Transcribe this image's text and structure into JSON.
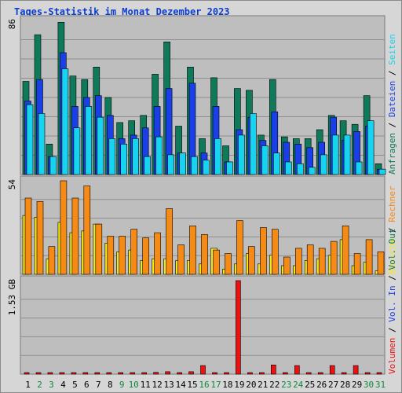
{
  "title": "Tages-Statistik im Monat Dezember 2023",
  "colors": {
    "anfragen": "#0e7a5a",
    "dateien": "#1a3fe6",
    "seiten": "#16d4f0",
    "besuche": "#f5e81a",
    "rechner": "#f58a14",
    "volumen": "#ee1111",
    "weekday_label": "#000000",
    "weekend_label": "#0a8a3a",
    "legend_slash": "#000000"
  },
  "days": [
    "1",
    "2",
    "3",
    "4",
    "5",
    "6",
    "7",
    "8",
    "9",
    "10",
    "11",
    "12",
    "13",
    "14",
    "15",
    "16",
    "17",
    "18",
    "19",
    "20",
    "21",
    "22",
    "23",
    "24",
    "25",
    "26",
    "27",
    "28",
    "29",
    "30",
    "31"
  ],
  "weekend_days": [
    "2",
    "3",
    "9",
    "10",
    "16",
    "17",
    "23",
    "24",
    "30",
    "31"
  ],
  "right_labels": {
    "top": [
      "Anfragen",
      "Dateien",
      "Seiten"
    ],
    "middle": [
      "Besuche",
      "Rechner"
    ],
    "bottom": [
      "Volumen",
      "Vol. In",
      "Vol. Out"
    ],
    "separator": " / "
  },
  "chart_data": [
    {
      "type": "bar",
      "ytick_label": "86",
      "ylim": [
        0,
        86
      ],
      "categories": [
        "1",
        "2",
        "3",
        "4",
        "5",
        "6",
        "7",
        "8",
        "9",
        "10",
        "11",
        "12",
        "13",
        "14",
        "15",
        "16",
        "17",
        "18",
        "19",
        "20",
        "21",
        "22",
        "23",
        "24",
        "25",
        "26",
        "27",
        "28",
        "29",
        "30",
        "31"
      ],
      "series": [
        {
          "name": "Anfragen",
          "values": [
            52,
            78,
            17,
            85,
            55,
            53,
            60,
            43,
            29,
            30,
            33,
            56,
            74,
            27,
            60,
            20,
            54,
            16,
            48,
            47,
            22,
            53,
            21,
            20,
            20,
            25,
            33,
            30,
            28,
            44,
            6
          ]
        },
        {
          "name": "Dateien",
          "values": [
            41,
            53,
            10,
            68,
            38,
            43,
            44,
            33,
            20,
            22,
            26,
            38,
            48,
            12,
            51,
            12,
            38,
            7,
            25,
            32,
            19,
            35,
            18,
            17,
            15,
            18,
            32,
            19,
            24,
            27,
            3
          ]
        },
        {
          "name": "Seiten",
          "values": [
            39,
            34,
            10,
            59,
            26,
            38,
            32,
            20,
            17,
            20,
            10,
            21,
            11,
            12,
            10,
            8,
            20,
            7,
            22,
            34,
            16,
            12,
            7,
            6,
            4,
            11,
            22,
            22,
            7,
            30,
            3
          ]
        }
      ]
    },
    {
      "type": "bar",
      "ytick_label": "54",
      "ylim": [
        0,
        54
      ],
      "categories": [
        "1",
        "2",
        "3",
        "4",
        "5",
        "6",
        "7",
        "8",
        "9",
        "10",
        "11",
        "12",
        "13",
        "14",
        "15",
        "16",
        "17",
        "18",
        "19",
        "20",
        "21",
        "22",
        "23",
        "24",
        "25",
        "26",
        "27",
        "28",
        "29",
        "30",
        "31"
      ],
      "series": [
        {
          "name": "Besuche",
          "values": [
            34,
            33,
            9,
            30,
            24,
            25,
            29,
            18,
            13,
            14,
            8,
            9,
            9,
            8,
            8,
            6,
            15,
            3,
            6,
            12,
            6,
            11,
            5,
            5,
            8,
            9,
            11,
            20,
            5,
            7,
            2
          ]
        },
        {
          "name": "Rechner",
          "values": [
            44,
            42,
            16,
            54,
            44,
            51,
            29,
            22,
            22,
            26,
            21,
            24,
            38,
            17,
            28,
            23,
            14,
            12,
            31,
            16,
            27,
            26,
            10,
            15,
            17,
            15,
            19,
            28,
            12,
            20,
            13
          ]
        }
      ]
    },
    {
      "type": "bar",
      "ytick_label": "1.53 GB",
      "ylim": [
        0,
        1.53
      ],
      "categories": [
        "1",
        "2",
        "3",
        "4",
        "5",
        "6",
        "7",
        "8",
        "9",
        "10",
        "11",
        "12",
        "13",
        "14",
        "15",
        "16",
        "17",
        "18",
        "19",
        "20",
        "21",
        "22",
        "23",
        "24",
        "25",
        "26",
        "27",
        "28",
        "29",
        "30",
        "31"
      ],
      "series": [
        {
          "name": "Volumen",
          "values": [
            0.02,
            0.02,
            0.02,
            0.02,
            0.02,
            0.02,
            0.02,
            0.02,
            0.02,
            0.02,
            0.02,
            0.03,
            0.04,
            0.02,
            0.04,
            0.14,
            0.02,
            0.02,
            1.53,
            0.02,
            0.02,
            0.15,
            0.02,
            0.14,
            0.02,
            0.02,
            0.14,
            0.02,
            0.14,
            0.02,
            0.02
          ]
        }
      ]
    }
  ]
}
